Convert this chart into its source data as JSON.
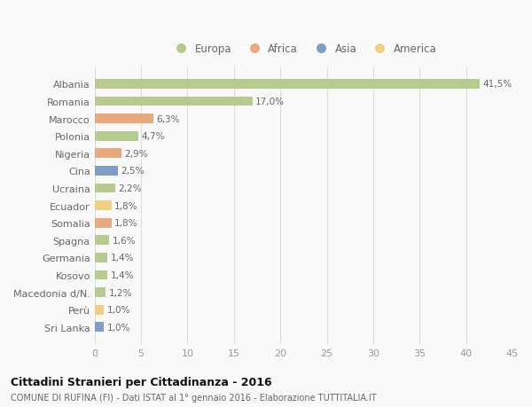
{
  "categories": [
    "Albania",
    "Romania",
    "Marocco",
    "Polonia",
    "Nigeria",
    "Cina",
    "Ucraina",
    "Ecuador",
    "Somalia",
    "Spagna",
    "Germania",
    "Kosovo",
    "Macedonia d/N.",
    "Perù",
    "Sri Lanka"
  ],
  "values": [
    41.5,
    17.0,
    6.3,
    4.7,
    2.9,
    2.5,
    2.2,
    1.8,
    1.8,
    1.6,
    1.4,
    1.4,
    1.2,
    1.0,
    1.0
  ],
  "labels": [
    "41,5%",
    "17,0%",
    "6,3%",
    "4,7%",
    "2,9%",
    "2,5%",
    "2,2%",
    "1,8%",
    "1,8%",
    "1,6%",
    "1,4%",
    "1,4%",
    "1,2%",
    "1,0%",
    "1,0%"
  ],
  "colors": [
    "#b5cc8e",
    "#b5cc8e",
    "#e8a97e",
    "#b5cc8e",
    "#e8a97e",
    "#7b9fc7",
    "#b5cc8e",
    "#f0d080",
    "#e8a97e",
    "#b5cc8e",
    "#b5cc8e",
    "#b5cc8e",
    "#b5cc8e",
    "#f0d080",
    "#7b9fc7"
  ],
  "legend": [
    {
      "label": "Europa",
      "color": "#b5cc8e"
    },
    {
      "label": "Africa",
      "color": "#e8a97e"
    },
    {
      "label": "Asia",
      "color": "#7b9fc7"
    },
    {
      "label": "America",
      "color": "#f0d080"
    }
  ],
  "xlim": [
    0,
    45
  ],
  "xticks": [
    0,
    5,
    10,
    15,
    20,
    25,
    30,
    35,
    40,
    45
  ],
  "title": "Cittadini Stranieri per Cittadinanza - 2016",
  "subtitle": "COMUNE DI RUFINA (FI) - Dati ISTAT al 1° gennaio 2016 - Elaborazione TUTTITALIA.IT",
  "bg_color": "#f9f9f9",
  "grid_color": "#dddddd",
  "bar_height": 0.55
}
